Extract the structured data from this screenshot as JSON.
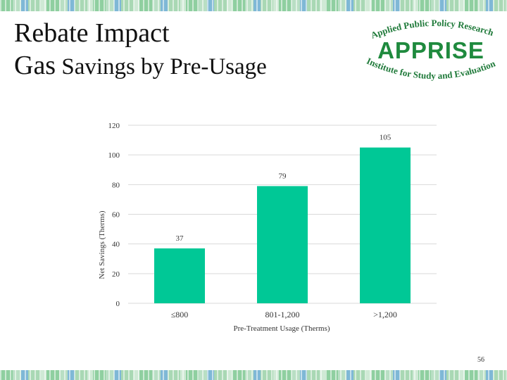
{
  "slide": {
    "title_line1": "Rebate Impact",
    "title_line2_prefix": "Gas",
    "title_line2_rest": " Savings by Pre-Usage",
    "page_number": "56"
  },
  "logo": {
    "top_text": "Applied Public Policy Research",
    "brand": "APPRISE",
    "bottom_text": "Institute for Study and Evaluation"
  },
  "colors": {
    "bar": "#00c896",
    "grid": "#d9d9d9",
    "brand_green": "#1f8a3e"
  },
  "chart_data": {
    "type": "bar",
    "categories": [
      "≤800",
      "801-1,200",
      ">1,200"
    ],
    "values": [
      37,
      79,
      105
    ],
    "value_labels": [
      "37",
      "79",
      "105"
    ],
    "xlabel": "Pre-Treatment Usage (Therms)",
    "ylabel": "Net Savings (Therms)",
    "ylim": [
      0,
      120
    ],
    "yticks": [
      0,
      20,
      40,
      60,
      80,
      100,
      120
    ],
    "grid": true,
    "legend": "none"
  }
}
